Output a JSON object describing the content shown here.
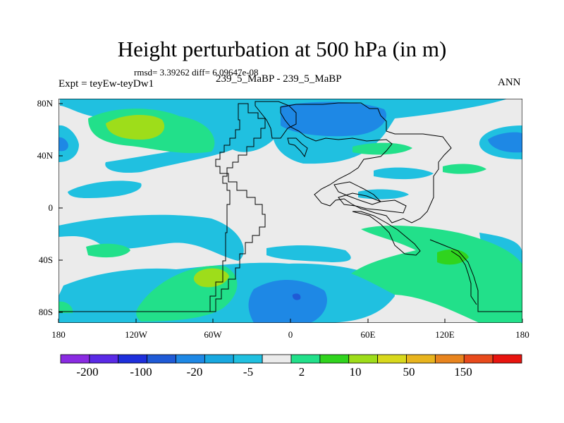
{
  "title": "Height perturbation at 500 hPa (in m)",
  "stats": "rmsd= 3.39262 diff= 6.09647e-08",
  "left_label": "Expt = teyEw-teyDw1",
  "center_label": "239_5_MaBP - 239_5_MaBP",
  "right_label": "ANN",
  "map": {
    "projection": "cylindrical-equidistant",
    "background": "#ebebeb",
    "lat_ticks": [
      "80N",
      "40N",
      "0",
      "40S",
      "80S"
    ],
    "lon_ticks": [
      "180",
      "120W",
      "60W",
      "0",
      "60E",
      "120E",
      "180"
    ]
  },
  "colorbar": {
    "colors": [
      "#8a2be2",
      "#5a2ae6",
      "#1e2fdc",
      "#1f5ad6",
      "#1e88e5",
      "#18a8e0",
      "#20c0e0",
      "#ebebeb",
      "#22e08a",
      "#30d41e",
      "#9edd1a",
      "#d8d81c",
      "#e8b41e",
      "#e8841e",
      "#e84a1c",
      "#e8140f"
    ],
    "labels": [
      "-200",
      "-100",
      "-20",
      "-5",
      "2",
      "10",
      "50",
      "150"
    ]
  }
}
